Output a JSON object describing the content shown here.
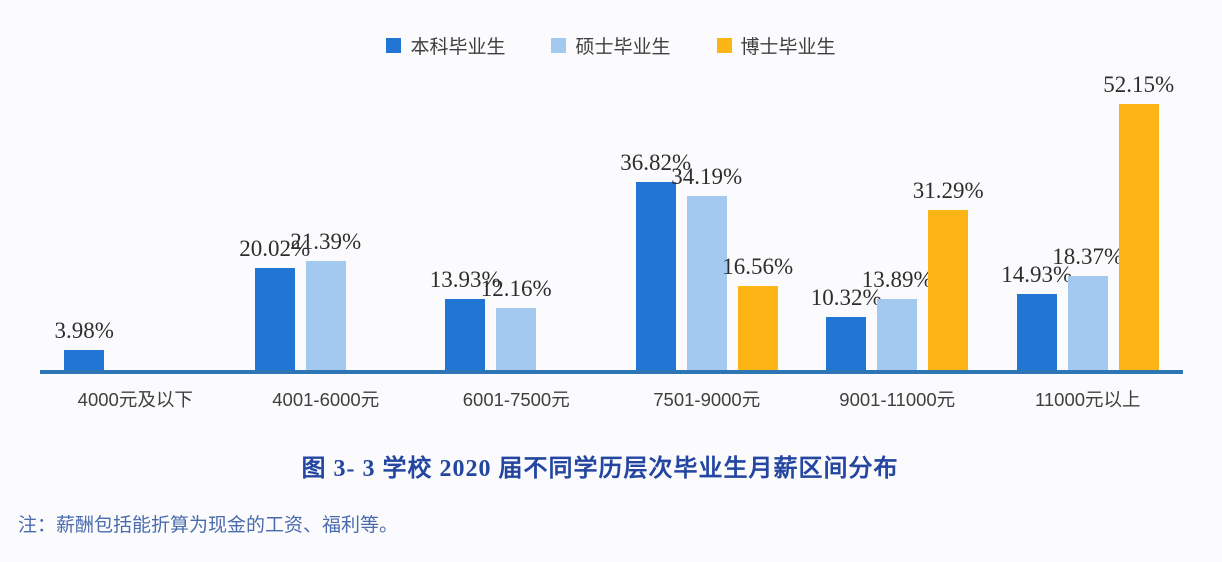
{
  "chart_data": {
    "type": "bar",
    "title": "图 3- 3  学校 2020 届不同学历层次毕业生月薪区间分布",
    "categories": [
      "4000元及以下",
      "4001-6000元",
      "6001-7500元",
      "7501-9000元",
      "9001-11000元",
      "11000元以上"
    ],
    "series": [
      {
        "name": "本科毕业生",
        "color": "#2176d3",
        "values": [
          3.98,
          20.02,
          13.93,
          36.82,
          10.32,
          14.93
        ]
      },
      {
        "name": "硕士毕业生",
        "color": "#a3c9ef",
        "values": [
          null,
          21.39,
          12.16,
          34.19,
          13.89,
          18.37
        ]
      },
      {
        "name": "博士毕业生",
        "color": "#fcb514",
        "values": [
          null,
          null,
          null,
          16.56,
          31.29,
          52.15
        ]
      }
    ],
    "value_suffix": "%",
    "value_label_format": "two-decimal percent",
    "ylim": [
      0,
      55
    ],
    "grid": false,
    "y_axis_visible": false,
    "legend_position": "top",
    "axis_color": "#2e75b6"
  },
  "caption": {
    "title": "图 3- 3  学校 2020 届不同学历层次毕业生月薪区间分布"
  },
  "note": {
    "text": "注：薪酬包括能折算为现金的工资、福利等。"
  },
  "colors": {
    "background": "#fbfbfd",
    "caption_text": "#2446a0",
    "note_text": "#4a6cae",
    "category_text": "#3f3f3f",
    "value_label_text": "#2d2d2d"
  }
}
